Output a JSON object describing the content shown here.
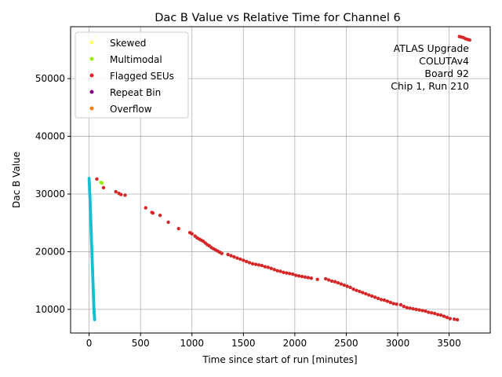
{
  "chart_data": {
    "type": "scatter",
    "title": "Dac B Value vs Relative Time for Channel 6",
    "xlabel": "Time since start of run [minutes]",
    "ylabel": "Dac B Value",
    "xlim": [
      -180,
      3900
    ],
    "ylim": [
      5900,
      59000
    ],
    "xticks": [
      0,
      500,
      1000,
      1500,
      2000,
      2500,
      3000,
      3500
    ],
    "yticks": [
      10000,
      20000,
      30000,
      40000,
      50000
    ],
    "grid": true,
    "legend_position": "upper-left",
    "annotation": [
      "ATLAS Upgrade",
      "COLUTAv4",
      "Board 92",
      "Chip 1, Run 210"
    ],
    "legend": [
      {
        "name": "Skewed",
        "color": "#ffff66"
      },
      {
        "name": "Multimodal",
        "color": "#99ee00"
      },
      {
        "name": "Flagged SEUs",
        "color": "#d62728"
      },
      {
        "name": "Repeat Bin",
        "color": "#800080"
      },
      {
        "name": "Overflow",
        "color": "#ff7f0e"
      }
    ],
    "series": [
      {
        "name": "Flagged SEUs",
        "color": "#d62728",
        "points": [
          [
            75,
            32600
          ],
          [
            140,
            31100
          ],
          [
            260,
            30400
          ],
          [
            290,
            30100
          ],
          [
            310,
            29900
          ],
          [
            350,
            29800
          ],
          [
            550,
            27600
          ],
          [
            610,
            26800
          ],
          [
            620,
            26700
          ],
          [
            690,
            26300
          ],
          [
            770,
            25100
          ],
          [
            870,
            24000
          ],
          [
            980,
            23300
          ],
          [
            1000,
            23100
          ],
          [
            1030,
            22700
          ],
          [
            1050,
            22400
          ],
          [
            1070,
            22200
          ],
          [
            1090,
            22000
          ],
          [
            1110,
            21800
          ],
          [
            1130,
            21500
          ],
          [
            1150,
            21200
          ],
          [
            1170,
            21000
          ],
          [
            1190,
            20700
          ],
          [
            1210,
            20500
          ],
          [
            1230,
            20300
          ],
          [
            1250,
            20100
          ],
          [
            1270,
            19900
          ],
          [
            1290,
            19700
          ],
          [
            1350,
            19500
          ],
          [
            1380,
            19300
          ],
          [
            1410,
            19100
          ],
          [
            1440,
            18900
          ],
          [
            1470,
            18700
          ],
          [
            1500,
            18500
          ],
          [
            1530,
            18300
          ],
          [
            1560,
            18100
          ],
          [
            1590,
            17900
          ],
          [
            1620,
            17800
          ],
          [
            1650,
            17700
          ],
          [
            1680,
            17600
          ],
          [
            1710,
            17400
          ],
          [
            1740,
            17300
          ],
          [
            1770,
            17100
          ],
          [
            1800,
            16900
          ],
          [
            1830,
            16700
          ],
          [
            1860,
            16600
          ],
          [
            1890,
            16400
          ],
          [
            1920,
            16300
          ],
          [
            1950,
            16200
          ],
          [
            1980,
            16100
          ],
          [
            2010,
            15900
          ],
          [
            2040,
            15800
          ],
          [
            2070,
            15700
          ],
          [
            2100,
            15600
          ],
          [
            2130,
            15500
          ],
          [
            2160,
            15400
          ],
          [
            2220,
            15200
          ],
          [
            2300,
            15300
          ],
          [
            2330,
            15100
          ],
          [
            2360,
            14900
          ],
          [
            2390,
            14800
          ],
          [
            2420,
            14600
          ],
          [
            2450,
            14400
          ],
          [
            2480,
            14200
          ],
          [
            2510,
            14000
          ],
          [
            2540,
            13800
          ],
          [
            2570,
            13500
          ],
          [
            2600,
            13300
          ],
          [
            2630,
            13100
          ],
          [
            2660,
            12900
          ],
          [
            2690,
            12700
          ],
          [
            2720,
            12500
          ],
          [
            2750,
            12300
          ],
          [
            2780,
            12100
          ],
          [
            2810,
            11900
          ],
          [
            2840,
            11700
          ],
          [
            2870,
            11600
          ],
          [
            2900,
            11400
          ],
          [
            2930,
            11200
          ],
          [
            2960,
            11000
          ],
          [
            2990,
            10900
          ],
          [
            3030,
            10800
          ],
          [
            3060,
            10500
          ],
          [
            3090,
            10300
          ],
          [
            3120,
            10200
          ],
          [
            3150,
            10100
          ],
          [
            3180,
            10000
          ],
          [
            3210,
            9900
          ],
          [
            3240,
            9800
          ],
          [
            3270,
            9700
          ],
          [
            3300,
            9500
          ],
          [
            3330,
            9400
          ],
          [
            3360,
            9300
          ],
          [
            3390,
            9100
          ],
          [
            3420,
            9000
          ],
          [
            3450,
            8800
          ],
          [
            3480,
            8600
          ],
          [
            3510,
            8400
          ],
          [
            3550,
            8300
          ],
          [
            3580,
            8200
          ],
          [
            3600,
            57300
          ],
          [
            3620,
            57200
          ],
          [
            3640,
            57100
          ],
          [
            3660,
            56900
          ],
          [
            3680,
            56800
          ],
          [
            3700,
            56700
          ]
        ]
      },
      {
        "name": "Multimodal",
        "color": "#99ee00",
        "points": [
          [
            115,
            32000
          ],
          [
            125,
            31900
          ]
        ]
      },
      {
        "name": "Skewed",
        "color": "#ffff66",
        "points": [
          [
            65,
            57300
          ],
          [
            70,
            57000
          ]
        ]
      }
    ],
    "cyan_trace": {
      "color": "#17becf",
      "points": [
        [
          0,
          32700
        ],
        [
          3,
          31500
        ],
        [
          5,
          30500
        ],
        [
          8,
          29500
        ],
        [
          10,
          28500
        ],
        [
          12,
          27500
        ],
        [
          14,
          26500
        ],
        [
          16,
          25500
        ],
        [
          18,
          24500
        ],
        [
          20,
          23500
        ],
        [
          22,
          22500
        ],
        [
          24,
          21500
        ],
        [
          26,
          20500
        ],
        [
          28,
          19500
        ],
        [
          30,
          18500
        ],
        [
          32,
          17500
        ],
        [
          34,
          16500
        ],
        [
          36,
          15500
        ],
        [
          38,
          14500
        ],
        [
          40,
          13500
        ],
        [
          42,
          12500
        ],
        [
          44,
          11500
        ],
        [
          46,
          10500
        ],
        [
          48,
          9800
        ],
        [
          50,
          9200
        ],
        [
          52,
          8600
        ],
        [
          54,
          8200
        ]
      ]
    }
  }
}
